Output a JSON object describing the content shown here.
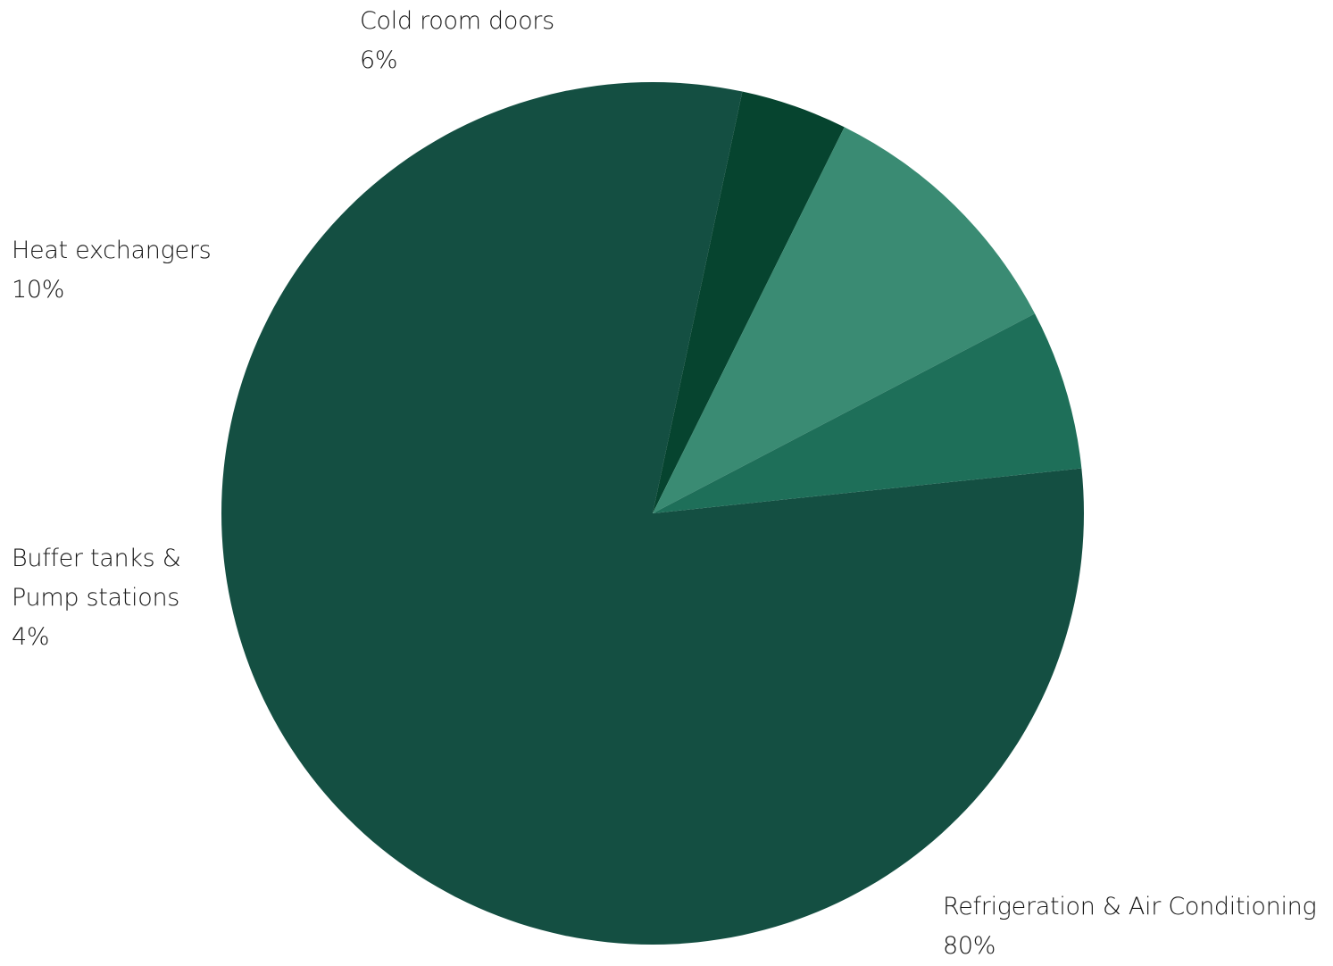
{
  "chart_data": {
    "type": "pie",
    "slices": [
      {
        "label": "Refrigeration & Air Conditioning",
        "value": 80,
        "value_label": "80%",
        "color": "#144F42"
      },
      {
        "label": "Buffer tanks & Pump stations",
        "value": 4,
        "value_label": "4%",
        "color": "#06442F"
      },
      {
        "label": "Heat exchangers",
        "value": 10,
        "value_label": "10%",
        "color": "#3A8B73"
      },
      {
        "label": "Cold room doors",
        "value": 6,
        "value_label": "6%",
        "color": "#1E6F59"
      }
    ],
    "labels": {
      "cold_room": {
        "name": "Cold room doors",
        "value": "6%"
      },
      "heat": {
        "name": "Heat exchangers",
        "value": "10%"
      },
      "buffer": {
        "line1": "Buffer tanks &",
        "line2": "Pump stations",
        "value": "4%"
      },
      "refrigeration": {
        "name": "Refrigeration & Air Conditioning",
        "value": "80%"
      }
    },
    "legend": "none"
  }
}
